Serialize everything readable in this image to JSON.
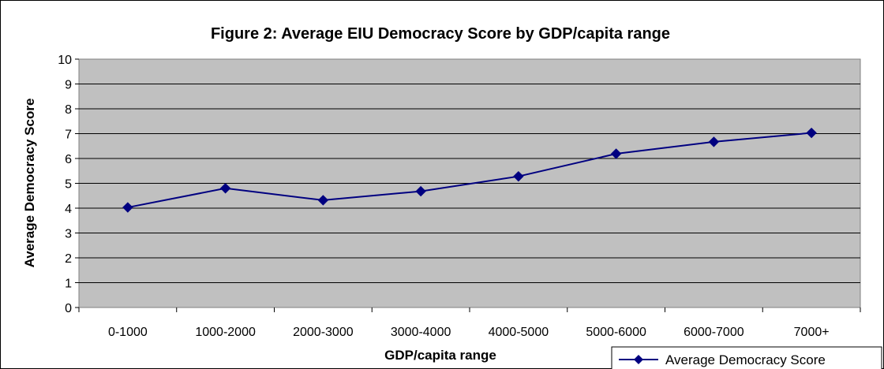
{
  "chart_data": {
    "type": "line",
    "title": "Figure 2: Average EIU Democracy Score by GDP/capita range",
    "xlabel": "GDP/capita range",
    "ylabel": "Average Democracy Score",
    "categories": [
      "0-1000",
      "1000-2000",
      "2000-3000",
      "3000-4000",
      "4000-5000",
      "5000-6000",
      "6000-7000",
      "7000+"
    ],
    "series": [
      {
        "name": "Average Democracy Score",
        "values": [
          4.03,
          4.8,
          4.32,
          4.68,
          5.28,
          6.19,
          6.67,
          7.03
        ],
        "color": "#000080"
      }
    ],
    "ylim": [
      0,
      10
    ],
    "yticks": [
      0,
      1,
      2,
      3,
      4,
      5,
      6,
      7,
      8,
      9,
      10
    ],
    "grid": true,
    "plot_background": "#c0c0c0",
    "legend_position": "bottom-right",
    "marker": "diamond"
  }
}
